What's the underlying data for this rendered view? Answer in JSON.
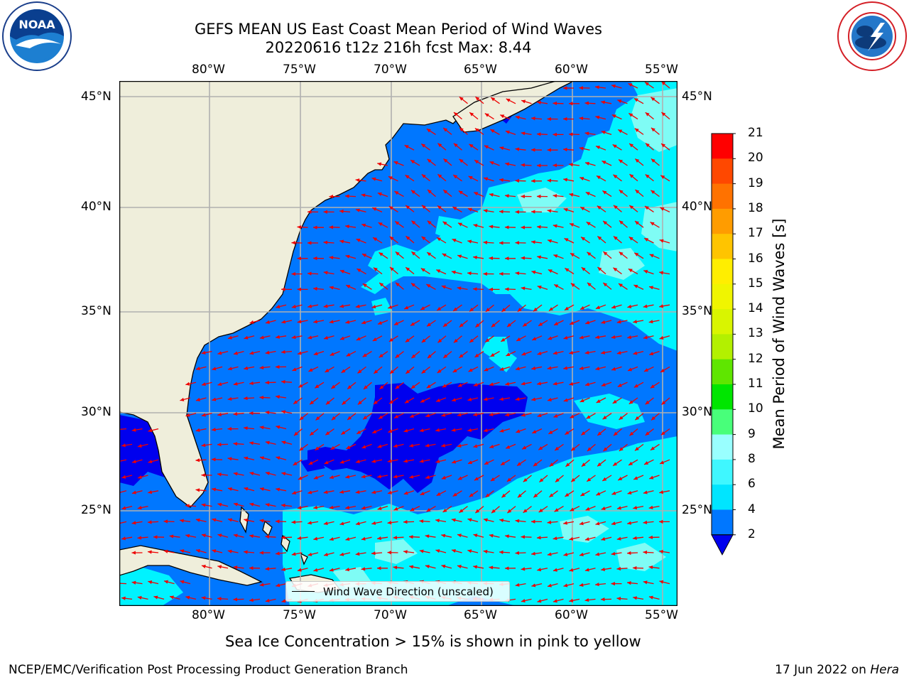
{
  "title": {
    "line1": "GEFS MEAN US East Coast Mean Period of Wind Waves",
    "line2": "20220616 t12z 216h fcst   Max: 8.44"
  },
  "logos": {
    "left": "noaa-logo",
    "right": "nws-logo",
    "left_text": "NOAA"
  },
  "axes": {
    "lon_labels": [
      "80°W",
      "75°W",
      "70°W",
      "65°W",
      "60°W",
      "55°W"
    ],
    "lat_labels": [
      "45°N",
      "40°N",
      "35°N",
      "30°N",
      "25°N"
    ]
  },
  "legend": {
    "label": "Wind Wave Direction (unscaled)"
  },
  "colorbar": {
    "title": "Mean Period of Wind Waves [s]",
    "ticks": [
      "2",
      "4",
      "6",
      "8",
      "9",
      "10",
      "11",
      "12",
      "13",
      "14",
      "15",
      "16",
      "17",
      "18",
      "19",
      "20",
      "21"
    ],
    "colors": [
      "#0000ee",
      "#0077ff",
      "#00e5ff",
      "#3ff7ff",
      "#99ffff",
      "#48ff7a",
      "#00e600",
      "#5fe600",
      "#b3f000",
      "#d9f500",
      "#f0f500",
      "#ffee00",
      "#ffc400",
      "#ff9c00",
      "#ff7200",
      "#ff4800",
      "#ff0000"
    ]
  },
  "notes": {
    "ice": "Sea Ice Concentration > 15% is shown in pink to yellow",
    "credit": "NCEP/EMC/Verification Post Processing Product Generation Branch",
    "date": "17 Jun 2022 on",
    "machine": "Hera"
  },
  "colors": {
    "land": "#efeedb",
    "sea_2_4": "#0077ff",
    "sea_lt2": "#0000ee",
    "sea_4_6": "#00f3ff",
    "sea_6_8": "#7ffcf5",
    "arrow": "#ee0000",
    "grid": "#b0b0b0"
  }
}
